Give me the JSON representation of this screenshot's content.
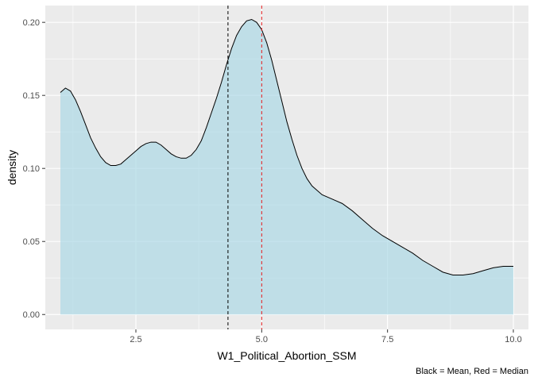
{
  "chart_data": {
    "type": "area",
    "xlabel": "W1_Political_Abortion_SSM",
    "ylabel": "density",
    "caption": "Black = Mean, Red = Median",
    "xlim": [
      0.7,
      10.3
    ],
    "ylim": [
      -0.0102,
      0.2115
    ],
    "x_ticks": [
      2.5,
      5.0,
      7.5,
      10.0
    ],
    "x_tick_labels": [
      "2.5",
      "5.0",
      "7.5",
      "10.0"
    ],
    "y_ticks": [
      0.0,
      0.05,
      0.1,
      0.15,
      0.2
    ],
    "y_tick_labels": [
      "0.00",
      "0.05",
      "0.10",
      "0.15",
      "0.20"
    ],
    "x_minor": [
      1.25,
      3.75,
      6.25,
      8.75
    ],
    "y_minor": [
      0.025,
      0.075,
      0.125,
      0.175
    ],
    "grid": true,
    "mean": 4.33,
    "median": 5.0,
    "colors": {
      "panel": "#ebebeb",
      "grid": "#ffffff",
      "fill": "#add8e6",
      "line": "#000000",
      "mean_line": "#000000",
      "median_line": "#e41a1c"
    },
    "series": [
      {
        "x": [
          1.0,
          1.1,
          1.2,
          1.3,
          1.4,
          1.5,
          1.6,
          1.7,
          1.8,
          1.9,
          2.0,
          2.1,
          2.2,
          2.3,
          2.4,
          2.5,
          2.6,
          2.7,
          2.8,
          2.9,
          3.0,
          3.1,
          3.2,
          3.3,
          3.4,
          3.5,
          3.6,
          3.7,
          3.8,
          3.9,
          4.0,
          4.1,
          4.2,
          4.3,
          4.4,
          4.5,
          4.6,
          4.7,
          4.8,
          4.9,
          5.0,
          5.1,
          5.2,
          5.3,
          5.4,
          5.5,
          5.6,
          5.7,
          5.8,
          5.9,
          6.0,
          6.2,
          6.4,
          6.6,
          6.8,
          7.0,
          7.2,
          7.4,
          7.6,
          7.8,
          8.0,
          8.2,
          8.4,
          8.6,
          8.8,
          9.0,
          9.2,
          9.4,
          9.6,
          9.8,
          10.0
        ],
        "y": [
          0.152,
          0.155,
          0.153,
          0.147,
          0.139,
          0.13,
          0.121,
          0.114,
          0.108,
          0.104,
          0.102,
          0.102,
          0.103,
          0.106,
          0.109,
          0.112,
          0.115,
          0.117,
          0.118,
          0.118,
          0.116,
          0.113,
          0.11,
          0.108,
          0.107,
          0.107,
          0.109,
          0.113,
          0.119,
          0.128,
          0.138,
          0.148,
          0.159,
          0.171,
          0.182,
          0.191,
          0.197,
          0.201,
          0.202,
          0.2,
          0.195,
          0.186,
          0.174,
          0.16,
          0.146,
          0.132,
          0.12,
          0.109,
          0.1,
          0.093,
          0.088,
          0.082,
          0.079,
          0.076,
          0.071,
          0.065,
          0.059,
          0.054,
          0.05,
          0.046,
          0.042,
          0.037,
          0.033,
          0.029,
          0.027,
          0.027,
          0.028,
          0.03,
          0.032,
          0.033,
          0.033
        ]
      }
    ]
  }
}
